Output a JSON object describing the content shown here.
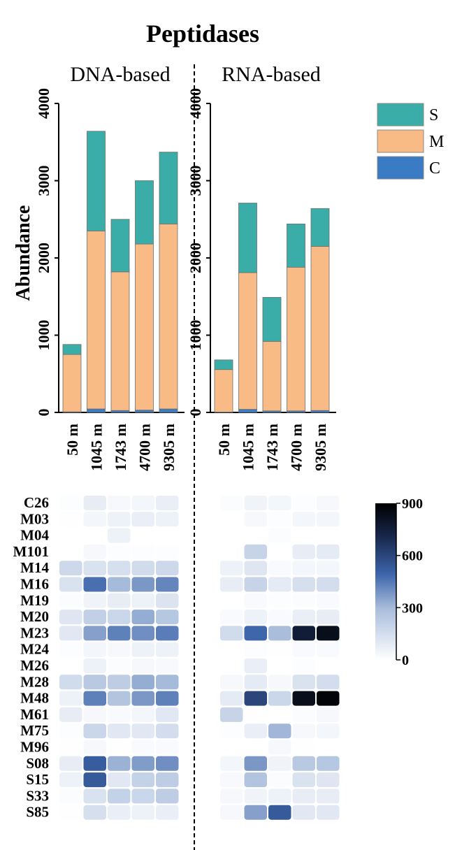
{
  "chart_data": [
    {
      "type": "bar",
      "stacked": true,
      "title": "Peptidases",
      "ylabel": "Abundance",
      "ylim": [
        0,
        4000
      ],
      "yticks": [
        0,
        1000,
        2000,
        3000,
        4000
      ],
      "categories": [
        "50 m",
        "1045 m",
        "1743 m",
        "4700 m",
        "9305 m"
      ],
      "legend": {
        "position": "right",
        "entries": [
          "S",
          "M",
          "C"
        ]
      },
      "colors": {
        "C": "#3a7cc4",
        "M": "#f8bb85",
        "S": "#3aada8"
      },
      "panels": [
        {
          "label": "DNA-based",
          "series": [
            {
              "name": "C",
              "values": [
                8,
                45,
                25,
                30,
                45
              ]
            },
            {
              "name": "M",
              "values": [
                742,
                2305,
                1795,
                2150,
                2395
              ]
            },
            {
              "name": "S",
              "values": [
                130,
                1290,
                680,
                820,
                930
              ]
            }
          ]
        },
        {
          "label": "RNA-based",
          "series": [
            {
              "name": "C",
              "values": [
                5,
                40,
                20,
                20,
                25
              ]
            },
            {
              "name": "M",
              "values": [
                550,
                1770,
                900,
                1860,
                2125
              ]
            },
            {
              "name": "S",
              "values": [
                125,
                900,
                570,
                560,
                490
              ]
            }
          ]
        }
      ]
    },
    {
      "type": "heatmap",
      "rows": [
        "C26",
        "M03",
        "M04",
        "M101",
        "M14",
        "M16",
        "M19",
        "M20",
        "M23",
        "M24",
        "M26",
        "M28",
        "M48",
        "M61",
        "M75",
        "M96",
        "S08",
        "S15",
        "S33",
        "S85"
      ],
      "columns": [
        "50 m",
        "1045 m",
        "1743 m",
        "4700 m",
        "9305 m"
      ],
      "colorbar": {
        "min": 0,
        "max": 900,
        "ticks": [
          0,
          300,
          600,
          900
        ]
      },
      "panels": [
        {
          "label": "DNA-based",
          "values": [
            [
              10,
              80,
              30,
              40,
              70
            ],
            [
              5,
              40,
              60,
              70,
              60
            ],
            [
              0,
              0,
              60,
              0,
              0
            ],
            [
              0,
              30,
              10,
              10,
              10
            ],
            [
              170,
              130,
              140,
              160,
              170
            ],
            [
              130,
              470,
              300,
              380,
              420
            ],
            [
              15,
              50,
              80,
              60,
              120
            ],
            [
              110,
              210,
              180,
              330,
              250
            ],
            [
              100,
              360,
              430,
              400,
              440
            ],
            [
              10,
              40,
              30,
              60,
              60
            ],
            [
              0,
              60,
              15,
              30,
              25
            ],
            [
              160,
              240,
              220,
              330,
              300
            ],
            [
              60,
              430,
              260,
              380,
              430
            ],
            [
              80,
              30,
              20,
              40,
              100
            ],
            [
              10,
              180,
              100,
              100,
              150
            ],
            [
              5,
              30,
              5,
              20,
              20
            ],
            [
              80,
              520,
              320,
              370,
              400
            ],
            [
              60,
              530,
              100,
              200,
              220
            ],
            [
              15,
              130,
              200,
              180,
              220
            ],
            [
              5,
              140,
              70,
              60,
              70
            ]
          ]
        },
        {
          "label": "RNA-based",
          "values": [
            [
              15,
              50,
              40,
              10,
              30
            ],
            [
              0,
              30,
              10,
              40,
              40
            ],
            [
              0,
              0,
              15,
              0,
              0
            ],
            [
              0,
              190,
              0,
              80,
              90
            ],
            [
              60,
              110,
              20,
              40,
              40
            ],
            [
              80,
              190,
              90,
              140,
              150
            ],
            [
              0,
              20,
              10,
              15,
              20
            ],
            [
              20,
              60,
              20,
              70,
              80
            ],
            [
              160,
              490,
              290,
              760,
              830
            ],
            [
              0,
              10,
              5,
              20,
              20
            ],
            [
              0,
              70,
              0,
              10,
              0
            ],
            [
              30,
              90,
              30,
              130,
              150
            ],
            [
              90,
              600,
              180,
              830,
              880
            ],
            [
              190,
              0,
              0,
              15,
              30
            ],
            [
              10,
              70,
              310,
              30,
              40
            ],
            [
              0,
              0,
              30,
              5,
              0
            ],
            [
              40,
              380,
              50,
              240,
              250
            ],
            [
              25,
              260,
              15,
              130,
              110
            ],
            [
              30,
              50,
              60,
              80,
              80
            ],
            [
              30,
              360,
              530,
              100,
              100
            ]
          ]
        }
      ]
    }
  ]
}
